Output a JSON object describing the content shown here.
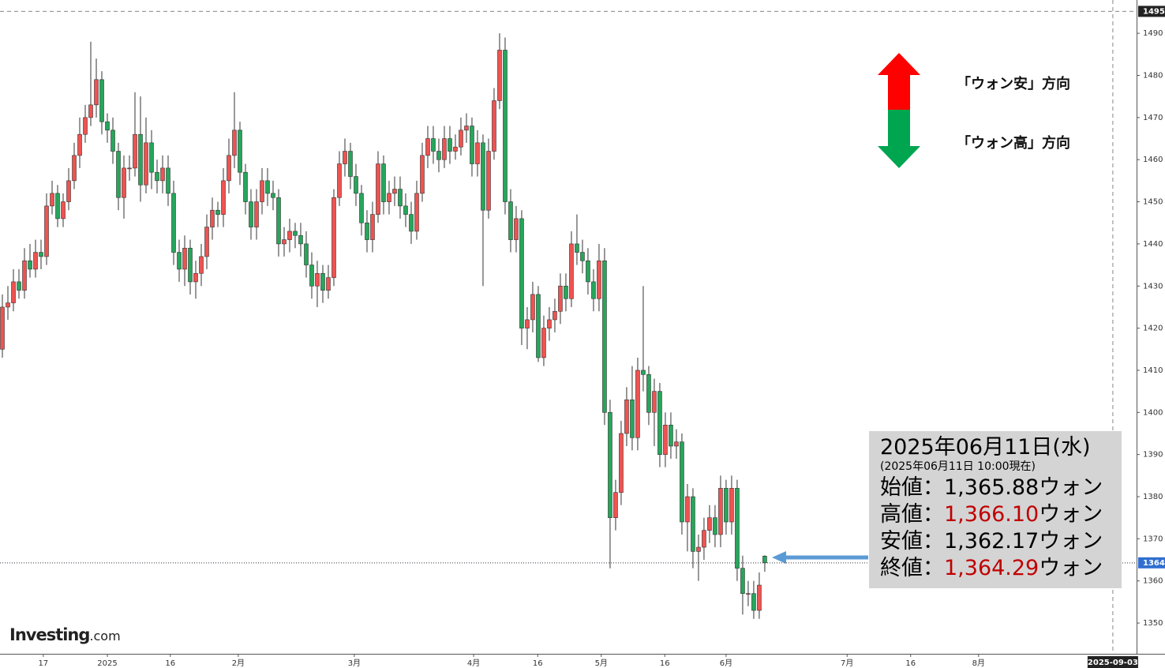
{
  "chart_data": {
    "type": "candlestick",
    "up_color": "#ef5350",
    "down_color": "#26a65b",
    "open": [
      1415,
      1425,
      1426,
      1431,
      1429,
      1436,
      1434,
      1438,
      1437,
      1449,
      1452,
      1446,
      1450,
      1455,
      1461,
      1466,
      1470,
      1473,
      1479,
      1469,
      1467,
      1462,
      1451,
      1458,
      1458,
      1466,
      1454,
      1464,
      1457,
      1455,
      1458,
      1452,
      1438,
      1434,
      1439,
      1431,
      1433,
      1437,
      1444,
      1448,
      1447,
      1455,
      1461,
      1467,
      1457,
      1450,
      1444,
      1450,
      1455,
      1452,
      1451,
      1440,
      1441,
      1443,
      1442,
      1440,
      1435,
      1430,
      1433,
      1429,
      1432,
      1451,
      1459,
      1462,
      1456,
      1452,
      1445,
      1441,
      1447,
      1459,
      1450,
      1452,
      1453,
      1449,
      1447,
      1443,
      1452,
      1461,
      1465,
      1462,
      1460,
      1465,
      1462,
      1463,
      1467,
      1468,
      1459,
      1464,
      1448,
      1462,
      1474,
      1486,
      1450,
      1441,
      1446,
      1420,
      1422,
      1428,
      1413,
      1420,
      1422,
      1424,
      1430,
      1427,
      1440,
      1438,
      1436,
      1431,
      1427,
      1436,
      1400,
      1375,
      1381,
      1395,
      1403,
      1394,
      1410,
      1409,
      1400,
      1405,
      1390,
      1397,
      1392,
      1393,
      1374,
      1380,
      1367,
      1368,
      1372,
      1375,
      1371,
      1382,
      1374,
      1382,
      1363,
      1357,
      1357,
      1353,
      1365.88
    ],
    "high": [
      1428,
      1430,
      1434,
      1434,
      1439,
      1440,
      1441,
      1441,
      1452,
      1455,
      1454,
      1452,
      1458,
      1464,
      1470,
      1473,
      1488,
      1484,
      1481,
      1471,
      1470,
      1464,
      1461,
      1461,
      1476,
      1475,
      1470,
      1467,
      1460,
      1461,
      1461,
      1455,
      1441,
      1442,
      1441,
      1436,
      1440,
      1447,
      1451,
      1450,
      1458,
      1465,
      1476,
      1469,
      1459,
      1453,
      1453,
      1458,
      1458,
      1455,
      1453,
      1444,
      1446,
      1445,
      1445,
      1443,
      1438,
      1436,
      1435,
      1435,
      1453,
      1462,
      1465,
      1464,
      1459,
      1454,
      1448,
      1450,
      1462,
      1461,
      1455,
      1456,
      1456,
      1452,
      1450,
      1455,
      1464,
      1468,
      1468,
      1465,
      1468,
      1468,
      1466,
      1470,
      1471,
      1470,
      1467,
      1466,
      1465,
      1477,
      1490,
      1489,
      1453,
      1449,
      1448,
      1425,
      1431,
      1430,
      1423,
      1425,
      1427,
      1433,
      1433,
      1443,
      1447,
      1441,
      1439,
      1434,
      1440,
      1439,
      1403,
      1384,
      1398,
      1406,
      1411,
      1413,
      1430,
      1411,
      1408,
      1407,
      1400,
      1400,
      1396,
      1395,
      1383,
      1382,
      1371,
      1375,
      1378,
      1378,
      1385,
      1384,
      1385,
      1384,
      1366,
      1360,
      1360,
      1362,
      1366.1
    ],
    "low": [
      1413,
      1422,
      1424,
      1427,
      1427,
      1432,
      1432,
      1434,
      1435,
      1447,
      1444,
      1444,
      1448,
      1453,
      1458,
      1464,
      1468,
      1470,
      1466,
      1464,
      1459,
      1448,
      1446,
      1455,
      1456,
      1450,
      1452,
      1453,
      1452,
      1452,
      1449,
      1435,
      1431,
      1430,
      1428,
      1427,
      1430,
      1434,
      1441,
      1444,
      1444,
      1452,
      1458,
      1454,
      1447,
      1441,
      1441,
      1447,
      1449,
      1448,
      1437,
      1437,
      1438,
      1439,
      1437,
      1432,
      1427,
      1425,
      1426,
      1427,
      1430,
      1449,
      1456,
      1453,
      1449,
      1442,
      1438,
      1438,
      1445,
      1447,
      1447,
      1449,
      1446,
      1444,
      1440,
      1441,
      1450,
      1458,
      1459,
      1457,
      1458,
      1459,
      1460,
      1461,
      1464,
      1456,
      1456,
      1430,
      1446,
      1460,
      1472,
      1447,
      1438,
      1438,
      1416,
      1415,
      1419,
      1412,
      1411,
      1417,
      1419,
      1421,
      1424,
      1425,
      1435,
      1433,
      1428,
      1424,
      1424,
      1397,
      1363,
      1372,
      1378,
      1392,
      1391,
      1391,
      1405,
      1397,
      1392,
      1387,
      1387,
      1389,
      1389,
      1371,
      1367,
      1363,
      1360,
      1365,
      1369,
      1368,
      1368,
      1371,
      1371,
      1360,
      1352,
      1354,
      1351,
      1351,
      1362.17
    ],
    "close": [
      1425,
      1426,
      1431,
      1429,
      1436,
      1434,
      1438,
      1437,
      1449,
      1452,
      1446,
      1450,
      1455,
      1461,
      1466,
      1470,
      1473,
      1479,
      1469,
      1467,
      1462,
      1451,
      1458,
      1458,
      1466,
      1454,
      1464,
      1457,
      1455,
      1458,
      1452,
      1438,
      1434,
      1439,
      1431,
      1433,
      1437,
      1444,
      1448,
      1447,
      1455,
      1461,
      1467,
      1457,
      1450,
      1444,
      1450,
      1455,
      1452,
      1451,
      1440,
      1441,
      1443,
      1442,
      1440,
      1435,
      1430,
      1433,
      1429,
      1432,
      1451,
      1459,
      1462,
      1456,
      1452,
      1445,
      1441,
      1447,
      1459,
      1450,
      1452,
      1453,
      1449,
      1447,
      1443,
      1452,
      1461,
      1465,
      1462,
      1460,
      1465,
      1462,
      1463,
      1467,
      1468,
      1459,
      1464,
      1448,
      1462,
      1474,
      1486,
      1450,
      1441,
      1446,
      1420,
      1422,
      1428,
      1413,
      1420,
      1422,
      1424,
      1430,
      1427,
      1440,
      1438,
      1436,
      1431,
      1427,
      1436,
      1400,
      1375,
      1381,
      1395,
      1403,
      1394,
      1410,
      1409,
      1400,
      1405,
      1390,
      1397,
      1392,
      1393,
      1374,
      1380,
      1367,
      1368,
      1372,
      1375,
      1371,
      1382,
      1374,
      1382,
      1363,
      1357,
      1357,
      1353,
      1359,
      1364.29
    ],
    "xlim": [
      -0.43,
      205.3
    ],
    "xticks": [
      {
        "value": 7.4,
        "label": "17"
      },
      {
        "value": 19,
        "label": "2025"
      },
      {
        "value": 30.4,
        "label": "16"
      },
      {
        "value": 42.7,
        "label": "2月"
      },
      {
        "value": 63.7,
        "label": "3月"
      },
      {
        "value": 85.3,
        "label": "4月"
      },
      {
        "value": 96.9,
        "label": "16"
      },
      {
        "value": 108.4,
        "label": "5月"
      },
      {
        "value": 119.9,
        "label": "16"
      },
      {
        "value": 131,
        "label": "6月"
      },
      {
        "value": 152.9,
        "label": "7月"
      },
      {
        "value": 164.4,
        "label": "16"
      },
      {
        "value": 176.7,
        "label": "8月"
      }
    ],
    "x_marker": {
      "value": 201,
      "label": "2025-09-03"
    },
    "ylim": [
      1342.7,
      1497.9
    ],
    "yticks": [
      1350,
      1360,
      1370,
      1380,
      1390,
      1400,
      1410,
      1420,
      1430,
      1440,
      1450,
      1460,
      1470,
      1480,
      1490
    ],
    "high_marker": {
      "value": 1495.2,
      "label": "1495"
    },
    "last_marker": {
      "value": 1364.29,
      "label": "1364"
    }
  },
  "legend": {
    "up_text": "「ウォン安」方向",
    "down_text": "「ウォン高」方向"
  },
  "info_box": {
    "date": "2025年06月11日(水)",
    "asof": "(2025年06月11日 10:00現在)",
    "rows": [
      {
        "label": "始値：",
        "value": "1,365.88",
        "unit": "ウォン",
        "color": "#000000"
      },
      {
        "label": "高値：",
        "value": "1,366.10",
        "unit": "ウォン",
        "color": "#c00000"
      },
      {
        "label": "安値：",
        "value": "1,362.17",
        "unit": "ウォン",
        "color": "#000000"
      },
      {
        "label": "終値：",
        "value": "1,364.29",
        "unit": "ウォン",
        "color": "#c00000"
      }
    ]
  },
  "logo": {
    "brand": "Investing",
    "suffix": ".com"
  }
}
